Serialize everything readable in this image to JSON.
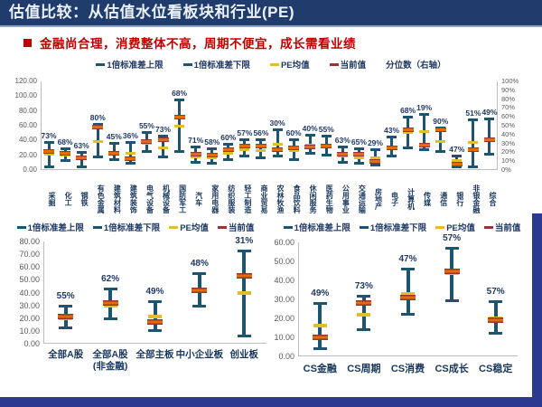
{
  "title": "估值比较：从估值水位看板块和行业(PE)",
  "subtitle": "金融尚合理，消费整体不高，周期不便宜，成长需看业绩",
  "colors": {
    "frame_blue": "#2b3a90",
    "titlebar_blue": "#1f3c6d",
    "title_text": "#ecf1fa",
    "subtitle_red": "#c00000",
    "navy_text": "#1f3864",
    "whisker_teal": "#1d5570",
    "mean_yellow": "#e2bf2a",
    "current_orange": "#e36c09",
    "current_dark_red": "#943634",
    "axis_gray": "#595959"
  },
  "legend": {
    "upper": "1倍标准差上限",
    "lower": "1倍标准差下限",
    "mean": "PE均值",
    "current": "当前值",
    "percentile_right_axis": "分位数（右轴）"
  },
  "chart_data": [
    {
      "id": "main",
      "type": "whisker-range",
      "title": "行业PE估值区间与分位数",
      "ylim": [
        0,
        120
      ],
      "yticks": [
        "120.00",
        "100.00",
        "80.00",
        "60.00",
        "40.00",
        "20.00",
        "0.00"
      ],
      "y2lim": [
        0,
        100
      ],
      "y2ticks": [
        "100%",
        "90%",
        "80%",
        "70%",
        "60%",
        "50%",
        "40%",
        "30%",
        "20%",
        "10%",
        "0%"
      ],
      "legend_keys": [
        "upper",
        "lower",
        "mean",
        "current",
        "percentile_right_axis"
      ],
      "points": [
        {
          "label": "采掘",
          "pct": "73%",
          "upper": 38,
          "lower": 4,
          "mean": 21,
          "current": 25
        },
        {
          "label": "化工",
          "pct": "68%",
          "upper": 30,
          "lower": 12,
          "mean": 20,
          "current": 23
        },
        {
          "label": "钢铁",
          "pct": "63%",
          "upper": 25,
          "lower": 4,
          "mean": 15,
          "current": 17
        },
        {
          "label": "有色金属",
          "pct": "80%",
          "upper": 63,
          "lower": 17,
          "mean": 38,
          "current": 58
        },
        {
          "label": "建筑材料",
          "pct": "45%",
          "upper": 37,
          "lower": 13,
          "mean": 24,
          "current": 23
        },
        {
          "label": "建筑装饰",
          "pct": "36%",
          "upper": 38,
          "lower": 8,
          "mean": 23,
          "current": 15
        },
        {
          "label": "电气设备",
          "pct": "55%",
          "upper": 52,
          "lower": 25,
          "mean": 36,
          "current": 39
        },
        {
          "label": "机械设备",
          "pct": "73%",
          "upper": 46,
          "lower": 17,
          "mean": 30,
          "current": 41
        },
        {
          "label": "国防军工",
          "pct": "68%",
          "upper": 95,
          "lower": 24,
          "mean": 60,
          "current": 72
        },
        {
          "label": "汽车",
          "pct": "71%",
          "upper": 32,
          "lower": 10,
          "mean": 18,
          "current": 21
        },
        {
          "label": "家用电器",
          "pct": "58%",
          "upper": 30,
          "lower": 8,
          "mean": 17,
          "current": 20
        },
        {
          "label": "纺织服装",
          "pct": "60%",
          "upper": 36,
          "lower": 14,
          "mean": 23,
          "current": 27
        },
        {
          "label": "轻工制造",
          "pct": "57%",
          "upper": 42,
          "lower": 18,
          "mean": 28,
          "current": 33
        },
        {
          "label": "商业贸易",
          "pct": "56%",
          "upper": 42,
          "lower": 16,
          "mean": 26,
          "current": 33
        },
        {
          "label": "农林牧渔",
          "pct": "30%",
          "upper": 55,
          "lower": 18,
          "mean": 35,
          "current": 28
        },
        {
          "label": "食品饮料",
          "pct": "60%",
          "upper": 42,
          "lower": 14,
          "mean": 26,
          "current": 30
        },
        {
          "label": "休闲服务",
          "pct": "40%",
          "upper": 48,
          "lower": 22,
          "mean": 34,
          "current": 31
        },
        {
          "label": "医药生物",
          "pct": "55%",
          "upper": 46,
          "lower": 20,
          "mean": 32,
          "current": 33
        },
        {
          "label": "公用事业",
          "pct": "63%",
          "upper": 32,
          "lower": 10,
          "mean": 19,
          "current": 22
        },
        {
          "label": "交通运输",
          "pct": "65%",
          "upper": 30,
          "lower": 8,
          "mean": 17,
          "current": 21
        },
        {
          "label": "房地产",
          "pct": "29%",
          "upper": 28,
          "lower": 6,
          "mean": 16,
          "current": 12
        },
        {
          "label": "电子",
          "pct": "43%",
          "upper": 45,
          "lower": 18,
          "mean": 31,
          "current": 30
        },
        {
          "label": "计算机",
          "pct": "68%",
          "upper": 72,
          "lower": 30,
          "mean": 51,
          "current": 55
        },
        {
          "label": "传媒",
          "pct": "19%",
          "upper": 76,
          "lower": 27,
          "mean": 52,
          "current": 34
        },
        {
          "label": "通信",
          "pct": "90%",
          "upper": 58,
          "lower": 25,
          "mean": 39,
          "current": 55
        },
        {
          "label": "银行",
          "pct": "47%",
          "upper": 20,
          "lower": 4,
          "mean": 13,
          "current": 8
        },
        {
          "label": "非银金融",
          "pct": "51%",
          "upper": 68,
          "lower": 4,
          "mean": 37,
          "current": 27
        },
        {
          "label": "综合",
          "pct": "49%",
          "upper": 70,
          "lower": 21,
          "mean": 42,
          "current": 41
        }
      ]
    },
    {
      "id": "boards",
      "type": "whisker-range",
      "title": "全市场及板块PE估值区间",
      "ylim": [
        0,
        80
      ],
      "yticks": [
        "80.00",
        "70.00",
        "60.00",
        "50.00",
        "40.00",
        "30.00",
        "20.00",
        "10.00",
        "0.00"
      ],
      "legend_keys": [
        "upper",
        "lower",
        "mean",
        "current"
      ],
      "points": [
        {
          "label": "全部A股",
          "pct": "55%",
          "upper": 30,
          "lower": 12,
          "mean": 20,
          "current": 21
        },
        {
          "label": "全部A股\n(非金融)",
          "pct": "62%",
          "upper": 43,
          "lower": 19,
          "mean": 30,
          "current": 32
        },
        {
          "label": "全部主板",
          "pct": "49%",
          "upper": 33,
          "lower": 10,
          "mean": 21,
          "current": 17
        },
        {
          "label": "中小企业板",
          "pct": "48%",
          "upper": 55,
          "lower": 29,
          "mean": 41,
          "current": 42
        },
        {
          "label": "创业板",
          "pct": "31%",
          "upper": 73,
          "lower": 6,
          "mean": 40,
          "current": 53
        }
      ]
    },
    {
      "id": "cs",
      "type": "whisker-range",
      "title": "中信风格指数PE估值区间",
      "ylim": [
        0,
        60
      ],
      "yticks": [
        "60.00",
        "50.00",
        "40.00",
        "30.00",
        "20.00",
        "10.00",
        "0.00"
      ],
      "legend_keys": [
        "upper",
        "lower",
        "mean",
        "current"
      ],
      "points": [
        {
          "label": "CS金融",
          "pct": "49%",
          "upper": 28,
          "lower": 4,
          "mean": 16,
          "current": 10
        },
        {
          "label": "CS周期",
          "pct": "73%",
          "upper": 32,
          "lower": 14,
          "mean": 22,
          "current": 28
        },
        {
          "label": "CS消费",
          "pct": "47%",
          "upper": 46,
          "lower": 22,
          "mean": 33,
          "current": 31
        },
        {
          "label": "CS成长",
          "pct": "57%",
          "upper": 57,
          "lower": 29,
          "mean": 44,
          "current": 45
        },
        {
          "label": "CS稳定",
          "pct": "57%",
          "upper": 29,
          "lower": 12,
          "mean": 20,
          "current": 19
        }
      ]
    }
  ]
}
